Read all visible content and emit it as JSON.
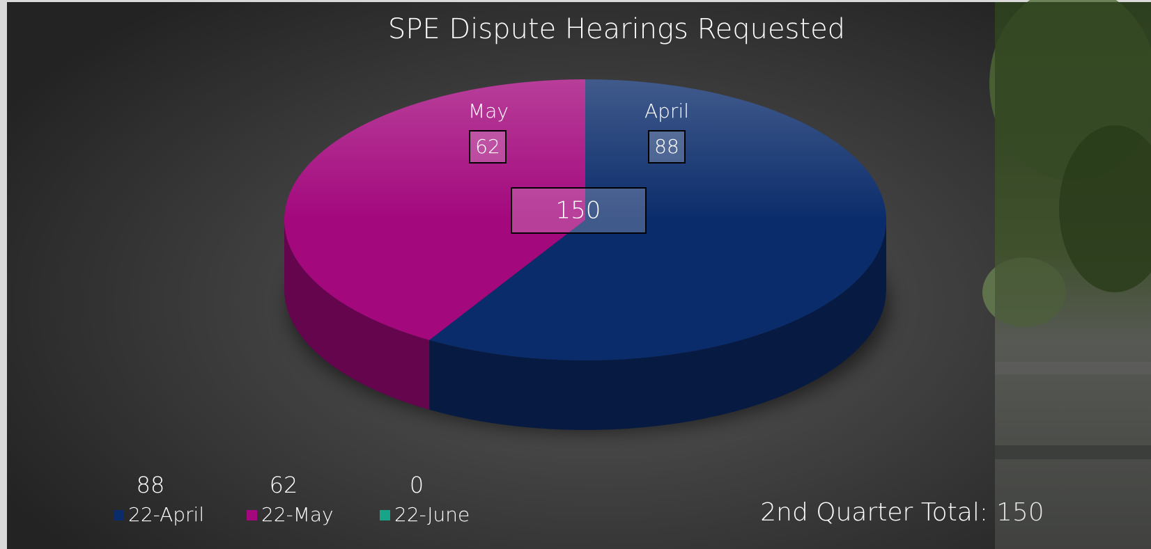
{
  "chart_data": {
    "type": "pie",
    "title": "SPE Dispute Hearings Requested",
    "categories": [
      "22-April",
      "22-May",
      "22-June"
    ],
    "slice_labels": [
      "April",
      "May",
      null
    ],
    "values": [
      88,
      62,
      0
    ],
    "colors": [
      "#0b2c6b",
      "#a3087d",
      "#17a488"
    ],
    "total": 150,
    "total_label": "2nd Quarter Total:",
    "legend": "bottom-left"
  }
}
